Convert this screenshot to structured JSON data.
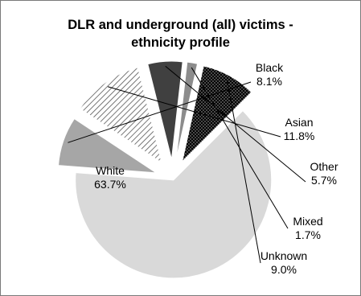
{
  "chart_data": {
    "type": "pie",
    "title": [
      "DLR and underground (all) victims -",
      "ethnicity profile"
    ],
    "slices": [
      {
        "label": "White",
        "value": 63.7,
        "text": "63.7%",
        "color": "#d9d9d9",
        "pattern": "solid"
      },
      {
        "label": "Black",
        "value": 8.1,
        "text": "8.1%",
        "color": "#a6a6a6",
        "pattern": "solid"
      },
      {
        "label": "Asian",
        "value": 11.8,
        "text": "11.8%",
        "color": "#ffffff",
        "pattern": "diagonal-hatch"
      },
      {
        "label": "Other",
        "value": 5.7,
        "text": "5.7%",
        "color": "#404040",
        "pattern": "solid"
      },
      {
        "label": "Mixed",
        "value": 1.7,
        "text": "1.7%",
        "color": "#8c8c8c",
        "pattern": "solid"
      },
      {
        "label": "Unknown",
        "value": 9.0,
        "text": "9.0%",
        "color": "#000000",
        "pattern": "dots"
      }
    ],
    "exploded": true,
    "legend": "none"
  }
}
